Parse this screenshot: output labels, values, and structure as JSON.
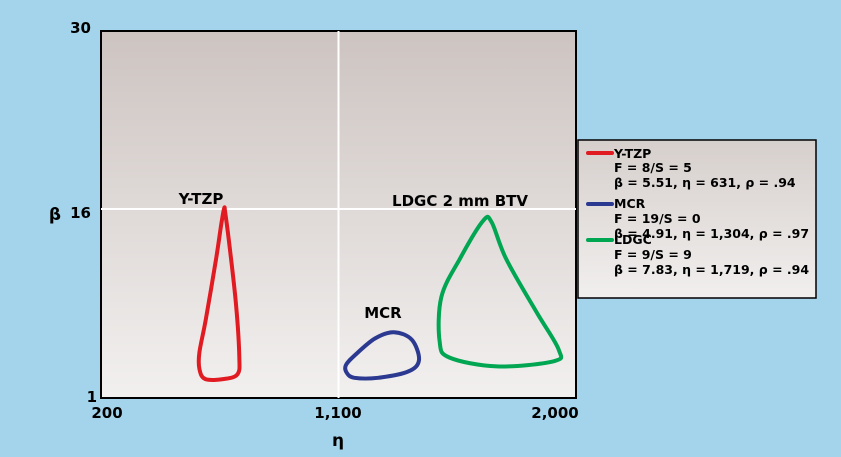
{
  "chart_data": {
    "type": "contour",
    "xlabel": "η",
    "ylabel": "β",
    "x_ticks": [
      "200",
      "1,100",
      "2,000"
    ],
    "y_ticks": [
      "1",
      "16",
      "30"
    ],
    "xlim": [
      200,
      2000
    ],
    "ylim": [
      1,
      30
    ],
    "grid": true,
    "legend_position": "right",
    "colors": {
      "Y-TZP": "#e11b22",
      "MCR": "#2b3990",
      "LDGC": "#00a651"
    },
    "region_labels": [
      "Y-TZP",
      "MCR",
      "LDGC 2 mm BTV"
    ],
    "series": [
      {
        "name": "Y-TZP",
        "legend_lines": [
          "Y-TZP",
          "F = 8/S = 5",
          "β = 5.51, η = 631, ρ = .94"
        ],
        "contour": [
          [
            667,
            16
          ],
          [
            657,
            14.9
          ],
          [
            636,
            12
          ],
          [
            598,
            7.3
          ],
          [
            573,
            4.6
          ],
          [
            573,
            3.3
          ],
          [
            595,
            2.5
          ],
          [
            666,
            2.5
          ],
          [
            718,
            2.9
          ],
          [
            724,
            4.3
          ],
          [
            712,
            8.3
          ],
          [
            689,
            12.7
          ],
          [
            671,
            15.6
          ]
        ]
      },
      {
        "name": "MCR",
        "legend_lines": [
          "MCR",
          "F = 19/S = 0",
          "β = 4.91, η = 1,304, ρ = .97"
        ],
        "contour": [
          [
            1128,
            3.6
          ],
          [
            1163,
            4.4
          ],
          [
            1238,
            5.7
          ],
          [
            1310,
            6.2
          ],
          [
            1378,
            5.6
          ],
          [
            1405,
            4.0
          ],
          [
            1365,
            3.1
          ],
          [
            1250,
            2.6
          ],
          [
            1160,
            2.6
          ],
          [
            1131,
            3.0
          ]
        ]
      },
      {
        "name": "LDGC",
        "legend_lines": [
          "LDGC",
          "F = 9/S = 9",
          "β = 7.83, η = 1,719, ρ = .94"
        ],
        "contour": [
          [
            1648,
            15.0
          ],
          [
            1560,
            12.0
          ],
          [
            1490,
            9.0
          ],
          [
            1483,
            5.5
          ],
          [
            1520,
            4.2
          ],
          [
            1700,
            3.5
          ],
          [
            1915,
            3.9
          ],
          [
            1935,
            4.8
          ],
          [
            1850,
            7.8
          ],
          [
            1735,
            12.0
          ],
          [
            1680,
            14.9
          ]
        ]
      }
    ]
  }
}
